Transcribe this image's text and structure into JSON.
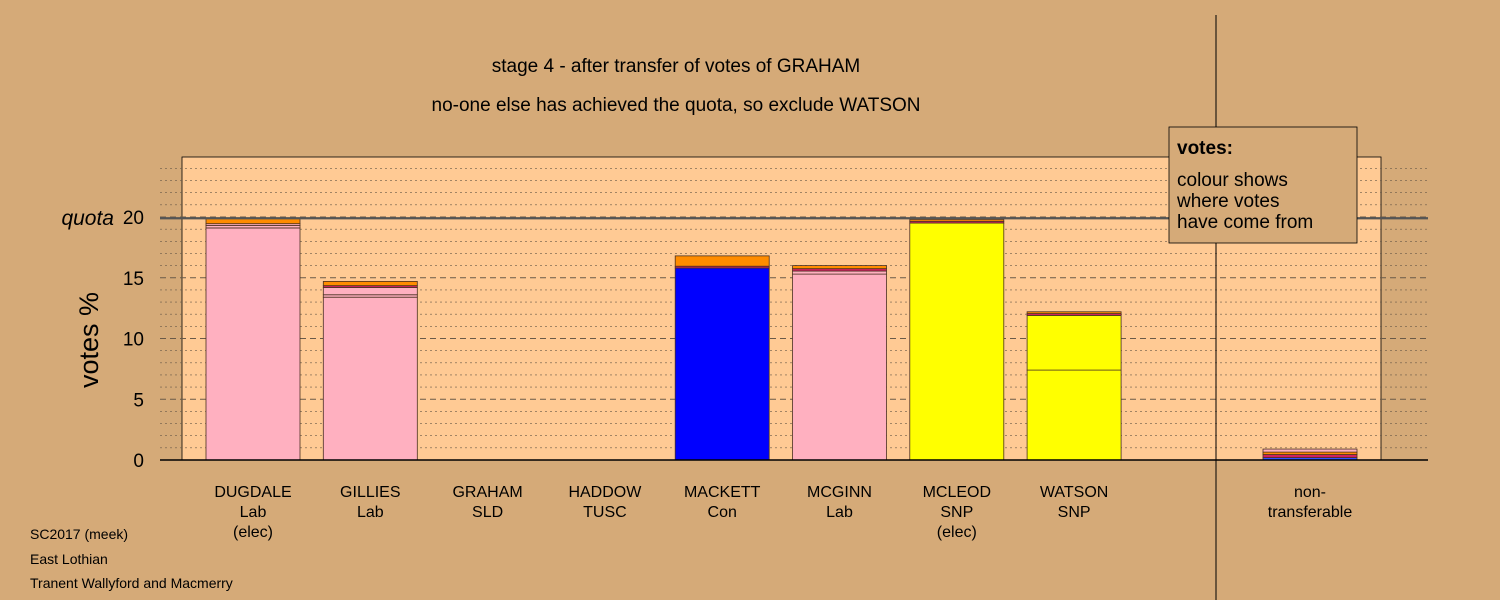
{
  "chart_data": {
    "type": "bar",
    "stacked": true,
    "title_lines": [
      "stage 4 - after transfer of votes of GRAHAM",
      "no-one else has achieved the quota, so exclude WATSON"
    ],
    "ylabel": "votes %",
    "ylim": [
      0,
      25
    ],
    "yticks": [
      0,
      5,
      10,
      15,
      20
    ],
    "quota_label": "quota",
    "quota": 19.9,
    "categories": [
      {
        "lines": [
          "DUGDALE",
          "Lab",
          "(elec)"
        ],
        "segments": [
          {
            "value": 19.1,
            "color": "#ffb0c0"
          },
          {
            "value": 0.2,
            "color": "#ffb0c0"
          },
          {
            "value": 0.15,
            "color": "#ffb0c0"
          },
          {
            "value": 0.45,
            "color": "#ff8c00"
          }
        ]
      },
      {
        "lines": [
          "GILLIES",
          "Lab"
        ],
        "segments": [
          {
            "value": 13.4,
            "color": "#ffb0c0"
          },
          {
            "value": 0.2,
            "color": "#ffb0c0"
          },
          {
            "value": 0.6,
            "color": "#ffb0c0"
          },
          {
            "value": 0.15,
            "color": "#d02060"
          },
          {
            "value": 0.35,
            "color": "#ff8c00"
          }
        ]
      },
      {
        "lines": [
          "GRAHAM",
          "SLD"
        ],
        "segments": []
      },
      {
        "lines": [
          "HADDOW",
          "TUSC"
        ],
        "segments": []
      },
      {
        "lines": [
          "MACKETT",
          "Con"
        ],
        "segments": [
          {
            "value": 15.8,
            "color": "#0000ff"
          },
          {
            "value": 0.15,
            "color": "#d02060"
          },
          {
            "value": 0.85,
            "color": "#ff8c00"
          }
        ]
      },
      {
        "lines": [
          "MCGINN",
          "Lab"
        ],
        "segments": [
          {
            "value": 15.3,
            "color": "#ffb0c0"
          },
          {
            "value": 0.25,
            "color": "#ffb0c0"
          },
          {
            "value": 0.2,
            "color": "#d02060"
          },
          {
            "value": 0.25,
            "color": "#ff8c00"
          }
        ]
      },
      {
        "lines": [
          "MCLEOD",
          "SNP",
          "(elec)"
        ],
        "segments": [
          {
            "value": 19.5,
            "color": "#ffff00"
          },
          {
            "value": 0.15,
            "color": "#d02060"
          },
          {
            "value": 0.15,
            "color": "#ff8c00"
          }
        ]
      },
      {
        "lines": [
          "WATSON",
          "SNP"
        ],
        "segments": [
          {
            "value": 7.4,
            "color": "#ffff00"
          },
          {
            "value": 4.5,
            "color": "#ffff00"
          },
          {
            "value": 0.15,
            "color": "#d02060"
          },
          {
            "value": 0.15,
            "color": "#ff8c00"
          }
        ]
      }
    ],
    "nontransferable": {
      "lines": [
        "non-",
        "transferable"
      ],
      "segments": [
        {
          "value": 0.2,
          "color": "#3050ff"
        },
        {
          "value": 0.25,
          "color": "#d02060"
        },
        {
          "value": 0.2,
          "color": "#ff8c00"
        },
        {
          "value": 0.25,
          "color": "#ffb0c0"
        }
      ]
    },
    "legend": {
      "title": "votes:",
      "lines": [
        "colour shows",
        "where votes",
        "have come from"
      ],
      "position": "top-right"
    },
    "colors": {
      "background": "#d5aa78",
      "plot_background": "#ffca94"
    }
  },
  "footer": [
    "SC2017 (meek)",
    "East Lothian",
    "Tranent Wallyford and Macmerry"
  ]
}
